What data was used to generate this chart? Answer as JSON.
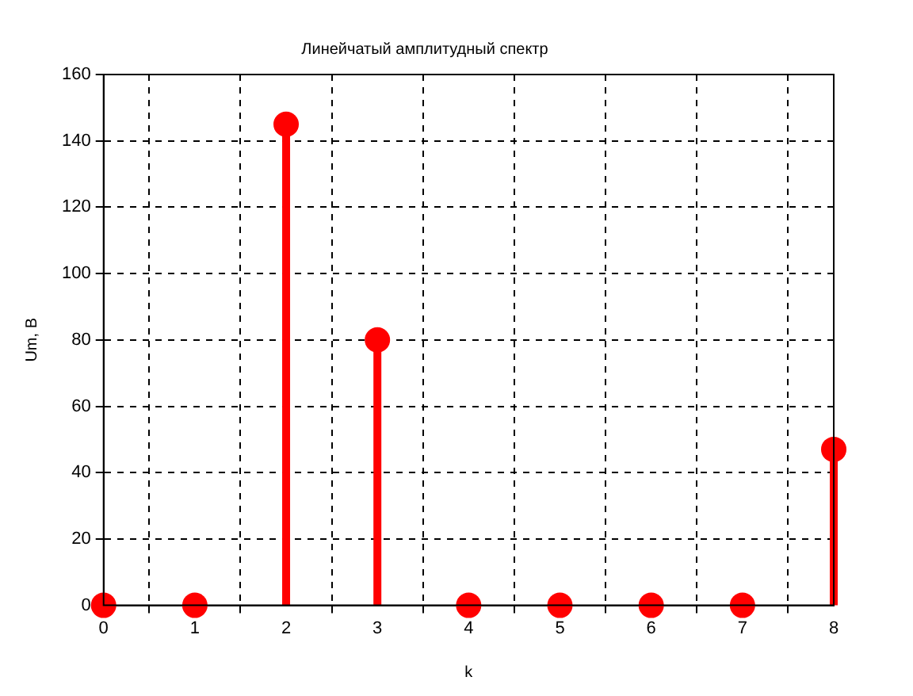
{
  "chart_data": {
    "type": "lollipop",
    "title": "Линейчатый амплитудный спектр",
    "xlabel": "k",
    "ylabel": "Um, B",
    "x": [
      0,
      1,
      2,
      3,
      4,
      5,
      6,
      7,
      8
    ],
    "series": [
      {
        "color": "#ff0000",
        "values": [
          0,
          0,
          145,
          80,
          0,
          0,
          0,
          0,
          47
        ]
      }
    ],
    "xlim": [
      0,
      8
    ],
    "xticks": [
      0,
      1,
      2,
      3,
      4,
      5,
      6,
      7,
      8
    ],
    "ylim": [
      0,
      160
    ],
    "yticks": [
      0,
      20,
      40,
      60,
      80,
      100,
      120,
      140,
      160
    ],
    "grid": true,
    "marker": "circle",
    "legend": false
  }
}
